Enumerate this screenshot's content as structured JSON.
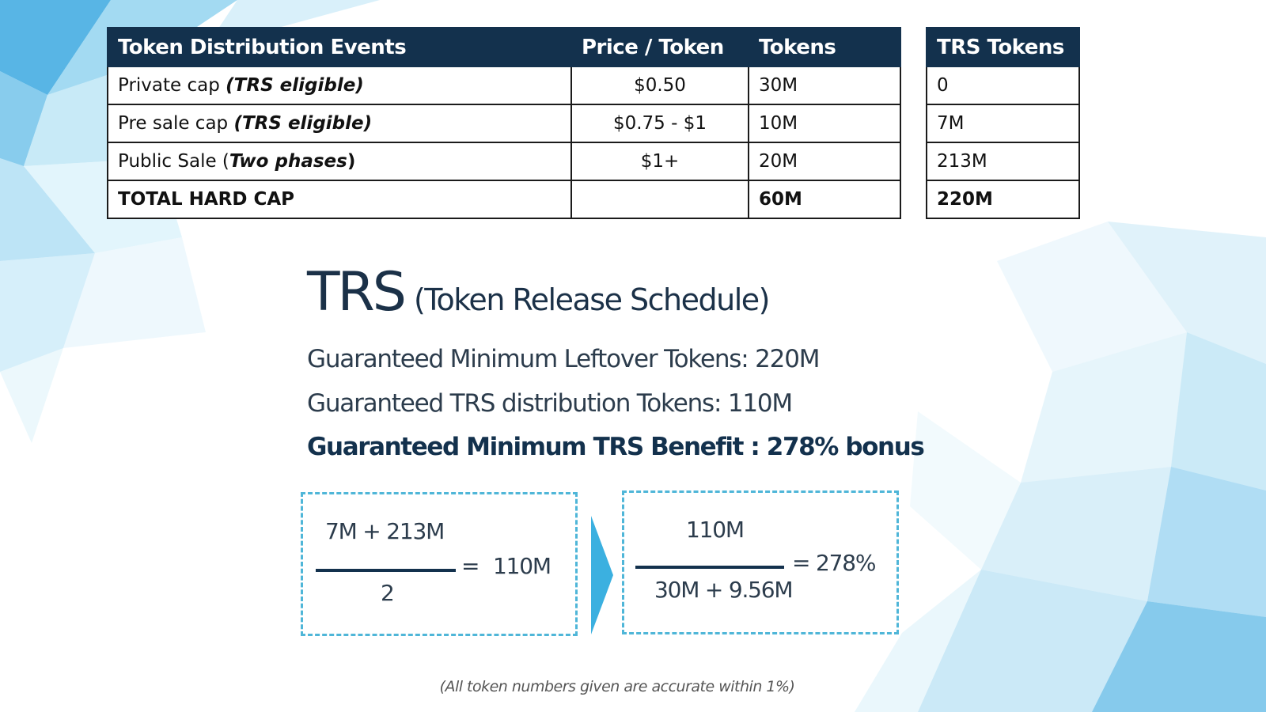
{
  "distribution_table": {
    "headers": [
      "Token Distribution Events",
      "Price / Token",
      "Tokens"
    ],
    "rows": [
      {
        "event": "Private cap ",
        "event_note": "(TRS eligible)",
        "note_suffix": "",
        "price": "$0.50",
        "tokens": "30M"
      },
      {
        "event": "Pre sale cap ",
        "event_note": "(TRS eligible)",
        "note_suffix": "",
        "price": "$0.75 - $1",
        "tokens": "10M"
      },
      {
        "event": "Public Sale (",
        "event_note": "Two phases",
        "note_suffix": ")",
        "price": "$1+",
        "tokens": "20M"
      }
    ],
    "total": {
      "label": "TOTAL HARD CAP",
      "price": "",
      "tokens": "60M"
    }
  },
  "trs_table": {
    "header": "TRS Tokens",
    "rows": [
      "0",
      "7M",
      "213M"
    ],
    "total": "220M"
  },
  "trs_section": {
    "title": "TRS",
    "subtitle": "(Token Release Schedule)",
    "line1": "Guaranteed Minimum Leftover Tokens: 220M",
    "line2": "Guaranteed TRS distribution Tokens: 110M",
    "line3": "Guaranteed Minimum TRS Benefit : 278% bonus"
  },
  "formula_a": {
    "numerator": "7M + 213M",
    "denominator": "2",
    "equals": "=",
    "result": "110M"
  },
  "formula_b": {
    "numerator": "110M",
    "denominator": "30M + 9.56M",
    "equals": "=",
    "result": "278%"
  },
  "footnote": "(All token numbers given are accurate within 1%)",
  "colors": {
    "header_bg": "#13314d",
    "dashed_border": "#4fb6d8",
    "arrow": "#3bb0e0"
  }
}
